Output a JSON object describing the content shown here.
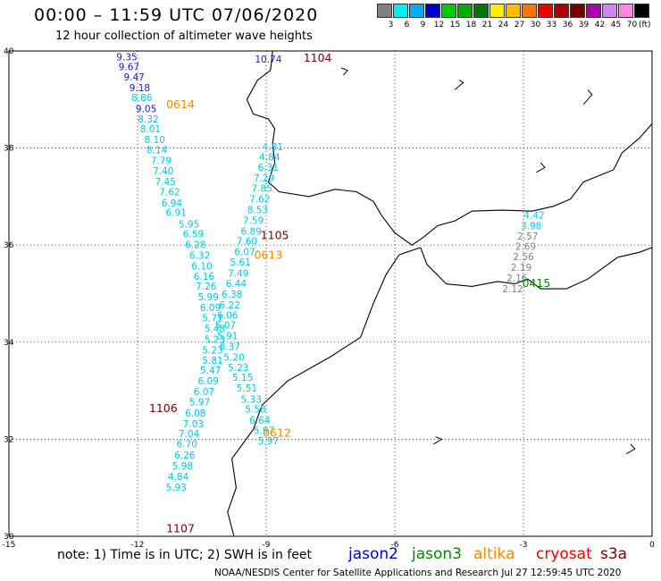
{
  "header": {
    "title": "00:00 – 11:59 UTC 07/06/2020",
    "subtitle": "12 hour collection of altimeter wave heights"
  },
  "legend": {
    "unit": "(ft)",
    "bins": [
      {
        "label": "3",
        "color": "#808080"
      },
      {
        "label": "6",
        "color": "#00eeee"
      },
      {
        "label": "9",
        "color": "#00aaff"
      },
      {
        "label": "12",
        "color": "#0000cc"
      },
      {
        "label": "15",
        "color": "#00cc00"
      },
      {
        "label": "18",
        "color": "#00aa00"
      },
      {
        "label": "21",
        "color": "#007700"
      },
      {
        "label": "24",
        "color": "#ffee00"
      },
      {
        "label": "27",
        "color": "#ffbb00"
      },
      {
        "label": "30",
        "color": "#ff7700"
      },
      {
        "label": "33",
        "color": "#ee0000"
      },
      {
        "label": "36",
        "color": "#aa0000"
      },
      {
        "label": "39",
        "color": "#770000"
      },
      {
        "label": "42",
        "color": "#aa00aa"
      },
      {
        "label": "45",
        "color": "#cc88ee"
      },
      {
        "label": "70",
        "color": "#ff88dd"
      },
      {
        "label": "",
        "color": "#000000"
      }
    ]
  },
  "axes": {
    "lon_ticks": [
      {
        "label": "-15",
        "lon": -15
      },
      {
        "label": "-12",
        "lon": -12
      },
      {
        "label": "-9",
        "lon": -9
      },
      {
        "label": "-6",
        "lon": -6
      },
      {
        "label": "-3",
        "lon": -3
      },
      {
        "label": "0",
        "lon": 0
      }
    ],
    "lat_ticks": [
      {
        "label": "40",
        "lat": 40
      },
      {
        "label": "38",
        "lat": 38
      },
      {
        "label": "36",
        "lat": 36
      },
      {
        "label": "34",
        "lat": 34
      },
      {
        "label": "32",
        "lat": 32
      },
      {
        "label": "30",
        "lat": 30
      }
    ],
    "lon_range": [
      -15,
      0
    ],
    "lat_range": [
      30,
      40
    ],
    "grid_lons": [
      -12,
      -9,
      -6,
      -3
    ],
    "grid_lats": [
      38,
      36,
      34,
      32
    ]
  },
  "colors": {
    "jason2": "#0000cc",
    "jason3": "#008800",
    "altika": "#ff8800",
    "cryosat": "#ee0000",
    "s3a": "#770000",
    "low": "#808080",
    "cyan": "#00c8e8",
    "blue": "#1a1acc"
  },
  "tracks": [
    {
      "sat": "s3a",
      "time": "1104",
      "time_lon": -7.8,
      "time_lat": 39.78
    },
    {
      "sat": "altika",
      "time": "0614",
      "time_lon": -11.0,
      "time_lat": 38.82
    },
    {
      "sat": "s3a",
      "time": "1105",
      "time_lon": -8.8,
      "time_lat": 36.12
    },
    {
      "sat": "altika",
      "time": "0613",
      "time_lon": -8.95,
      "time_lat": 35.72
    },
    {
      "sat": "jason3",
      "time": "0415",
      "time_lon": -2.7,
      "time_lat": 35.14
    },
    {
      "sat": "s3a",
      "time": "1106",
      "time_lon": -11.4,
      "time_lat": 32.56
    },
    {
      "sat": "altika",
      "time": "0612",
      "time_lon": -8.75,
      "time_lat": 32.05
    },
    {
      "sat": "s3a",
      "time": "1107",
      "time_lon": -11.0,
      "time_lat": 30.08
    }
  ],
  "obs": [
    {
      "v": "9.35",
      "lon": -12.25,
      "lat": 39.81,
      "c": "blue"
    },
    {
      "v": "9.67",
      "lon": -12.2,
      "lat": 39.6,
      "c": "blue"
    },
    {
      "v": "9.47",
      "lon": -12.08,
      "lat": 39.39,
      "c": "blue"
    },
    {
      "v": "9.18",
      "lon": -11.95,
      "lat": 39.17,
      "c": "blue"
    },
    {
      "v": "8.86",
      "lon": -11.9,
      "lat": 38.97,
      "c": "cyan"
    },
    {
      "v": "9.05",
      "lon": -11.8,
      "lat": 38.74,
      "c": "blue"
    },
    {
      "v": "8.32",
      "lon": -11.75,
      "lat": 38.53,
      "c": "cyan"
    },
    {
      "v": "8.01",
      "lon": -11.7,
      "lat": 38.32,
      "c": "cyan"
    },
    {
      "v": "8.10",
      "lon": -11.6,
      "lat": 38.1,
      "c": "cyan"
    },
    {
      "v": "8.14",
      "lon": -11.55,
      "lat": 37.89,
      "c": "cyan"
    },
    {
      "v": "7.79",
      "lon": -11.45,
      "lat": 37.67,
      "c": "cyan"
    },
    {
      "v": "7.40",
      "lon": -11.4,
      "lat": 37.46,
      "c": "cyan"
    },
    {
      "v": "7.45",
      "lon": -11.35,
      "lat": 37.24,
      "c": "cyan"
    },
    {
      "v": "7.62",
      "lon": -11.25,
      "lat": 37.03,
      "c": "cyan"
    },
    {
      "v": "6.94",
      "lon": -11.2,
      "lat": 36.8,
      "c": "cyan"
    },
    {
      "v": "6.91",
      "lon": -11.1,
      "lat": 36.6,
      "c": "cyan"
    },
    {
      "v": "5.95",
      "lon": -10.8,
      "lat": 36.36,
      "c": "cyan"
    },
    {
      "v": "6.59",
      "lon": -10.7,
      "lat": 36.16,
      "c": "cyan"
    },
    {
      "v": "6.28",
      "lon": -10.65,
      "lat": 35.94,
      "c": "cyan"
    },
    {
      "v": "6.32",
      "lon": -10.55,
      "lat": 35.72,
      "c": "cyan"
    },
    {
      "v": "6.10",
      "lon": -10.5,
      "lat": 35.5,
      "c": "cyan"
    },
    {
      "v": "6.16",
      "lon": -10.45,
      "lat": 35.29,
      "c": "cyan"
    },
    {
      "v": "7.26",
      "lon": -10.4,
      "lat": 35.08,
      "c": "cyan"
    },
    {
      "v": "5.99",
      "lon": -10.35,
      "lat": 34.86,
      "c": "cyan"
    },
    {
      "v": "6.09",
      "lon": -10.3,
      "lat": 34.64,
      "c": "cyan"
    },
    {
      "v": "5.71",
      "lon": -10.25,
      "lat": 34.43,
      "c": "cyan"
    },
    {
      "v": "5.48",
      "lon": -10.2,
      "lat": 34.21,
      "c": "cyan"
    },
    {
      "v": "5.23",
      "lon": -10.2,
      "lat": 33.99,
      "c": "cyan"
    },
    {
      "v": "5.23",
      "lon": -10.25,
      "lat": 33.77,
      "c": "cyan"
    },
    {
      "v": "5.81",
      "lon": -10.25,
      "lat": 33.55,
      "c": "cyan"
    },
    {
      "v": "5.47",
      "lon": -10.3,
      "lat": 33.35,
      "c": "cyan"
    },
    {
      "v": "6.09",
      "lon": -10.35,
      "lat": 33.13,
      "c": "cyan"
    },
    {
      "v": "6.07",
      "lon": -10.45,
      "lat": 32.91,
      "c": "cyan"
    },
    {
      "v": "5.97",
      "lon": -10.55,
      "lat": 32.7,
      "c": "cyan"
    },
    {
      "v": "6.08",
      "lon": -10.65,
      "lat": 32.47,
      "c": "cyan"
    },
    {
      "v": "7.03",
      "lon": -10.7,
      "lat": 32.25,
      "c": "cyan"
    },
    {
      "v": "7.04",
      "lon": -10.8,
      "lat": 32.04,
      "c": "cyan"
    },
    {
      "v": "6.70",
      "lon": -10.85,
      "lat": 31.83,
      "c": "cyan"
    },
    {
      "v": "6.26",
      "lon": -10.9,
      "lat": 31.6,
      "c": "cyan"
    },
    {
      "v": "5.98",
      "lon": -10.95,
      "lat": 31.38,
      "c": "cyan"
    },
    {
      "v": "4.84",
      "lon": -11.05,
      "lat": 31.16,
      "c": "cyan"
    },
    {
      "v": "5.93",
      "lon": -11.1,
      "lat": 30.94,
      "c": "cyan"
    },
    {
      "v": "10.74",
      "lon": -8.95,
      "lat": 39.76,
      "c": "blue"
    },
    {
      "v": "4.81",
      "lon": -8.85,
      "lat": 37.96,
      "c": "cyan"
    },
    {
      "v": "4.84",
      "lon": -8.92,
      "lat": 37.74,
      "c": "cyan"
    },
    {
      "v": "6.31",
      "lon": -8.95,
      "lat": 37.53,
      "c": "cyan"
    },
    {
      "v": "7.29",
      "lon": -9.05,
      "lat": 37.31,
      "c": "cyan"
    },
    {
      "v": "7.85",
      "lon": -9.1,
      "lat": 37.1,
      "c": "cyan"
    },
    {
      "v": "7.62",
      "lon": -9.15,
      "lat": 36.88,
      "c": "cyan"
    },
    {
      "v": "8.53",
      "lon": -9.2,
      "lat": 36.66,
      "c": "cyan"
    },
    {
      "v": "7.59",
      "lon": -9.3,
      "lat": 36.44,
      "c": "cyan"
    },
    {
      "v": "6.89",
      "lon": -9.35,
      "lat": 36.22,
      "c": "cyan"
    },
    {
      "v": "7.60",
      "lon": -9.45,
      "lat": 36.01,
      "c": "cyan"
    },
    {
      "v": "6.07",
      "lon": -9.5,
      "lat": 35.79,
      "c": "cyan"
    },
    {
      "v": "5.61",
      "lon": -9.6,
      "lat": 35.58,
      "c": "cyan"
    },
    {
      "v": "7.49",
      "lon": -9.65,
      "lat": 35.35,
      "c": "cyan"
    },
    {
      "v": "6.44",
      "lon": -9.7,
      "lat": 35.14,
      "c": "cyan"
    },
    {
      "v": "6.38",
      "lon": -9.8,
      "lat": 34.92,
      "c": "cyan"
    },
    {
      "v": "6.22",
      "lon": -9.85,
      "lat": 34.7,
      "c": "cyan"
    },
    {
      "v": "6.06",
      "lon": -9.9,
      "lat": 34.48,
      "c": "cyan"
    },
    {
      "v": "5.07",
      "lon": -9.95,
      "lat": 34.28,
      "c": "cyan"
    },
    {
      "v": "5.91",
      "lon": -9.9,
      "lat": 34.06,
      "c": "cyan"
    },
    {
      "v": "6.37",
      "lon": -9.85,
      "lat": 33.84,
      "c": "cyan"
    },
    {
      "v": "5.20",
      "lon": -9.75,
      "lat": 33.62,
      "c": "cyan"
    },
    {
      "v": "5.23",
      "lon": -9.65,
      "lat": 33.41,
      "c": "cyan"
    },
    {
      "v": "5.15",
      "lon": -9.55,
      "lat": 33.2,
      "c": "cyan"
    },
    {
      "v": "5.51",
      "lon": -9.45,
      "lat": 32.98,
      "c": "cyan"
    },
    {
      "v": "5.33",
      "lon": -9.35,
      "lat": 32.75,
      "c": "cyan"
    },
    {
      "v": "5.58",
      "lon": -9.25,
      "lat": 32.55,
      "c": "cyan"
    },
    {
      "v": "6.64",
      "lon": -9.15,
      "lat": 32.32,
      "c": "cyan"
    },
    {
      "v": "5.97",
      "lon": -9.05,
      "lat": 32.11,
      "c": "cyan"
    },
    {
      "v": "5.97",
      "lon": -8.95,
      "lat": 31.9,
      "c": "cyan"
    },
    {
      "v": "4.42",
      "lon": -2.75,
      "lat": 36.55,
      "c": "cyan"
    },
    {
      "v": "3.98",
      "lon": -2.82,
      "lat": 36.33,
      "c": "cyan"
    },
    {
      "v": "2.57",
      "lon": -2.9,
      "lat": 36.11,
      "c": "low"
    },
    {
      "v": "2.69",
      "lon": -2.95,
      "lat": 35.9,
      "c": "low"
    },
    {
      "v": "2.56",
      "lon": -3.0,
      "lat": 35.69,
      "c": "low"
    },
    {
      "v": "2.19",
      "lon": -3.05,
      "lat": 35.47,
      "c": "low"
    },
    {
      "v": "2.16",
      "lon": -3.15,
      "lat": 35.25,
      "c": "low"
    },
    {
      "v": "2.12",
      "lon": -3.25,
      "lat": 35.03,
      "c": "low"
    }
  ],
  "coast": {
    "iberia": [
      [
        -8.85,
        40
      ],
      [
        -8.9,
        39.6
      ],
      [
        -9.2,
        39.4
      ],
      [
        -9.45,
        39.0
      ],
      [
        -9.3,
        38.7
      ],
      [
        -8.95,
        38.6
      ],
      [
        -8.8,
        38.4
      ],
      [
        -8.85,
        38.1
      ],
      [
        -8.8,
        37.7
      ],
      [
        -8.95,
        37.3
      ],
      [
        -8.7,
        37.1
      ],
      [
        -8.0,
        37.0
      ],
      [
        -7.4,
        37.15
      ],
      [
        -6.9,
        37.1
      ],
      [
        -6.5,
        36.9
      ],
      [
        -6.3,
        36.6
      ],
      [
        -6.0,
        36.25
      ],
      [
        -5.6,
        36.0
      ],
      [
        -5.35,
        36.15
      ],
      [
        -5.0,
        36.4
      ],
      [
        -4.6,
        36.5
      ],
      [
        -4.2,
        36.7
      ],
      [
        -3.5,
        36.72
      ],
      [
        -2.8,
        36.7
      ],
      [
        -2.3,
        36.8
      ],
      [
        -1.9,
        36.95
      ],
      [
        -1.6,
        37.3
      ],
      [
        -0.9,
        37.55
      ],
      [
        -0.7,
        37.9
      ],
      [
        -0.3,
        38.2
      ],
      [
        -0.1,
        38.4
      ],
      [
        0,
        38.5
      ]
    ],
    "africa": [
      [
        -5.4,
        35.95
      ],
      [
        -5.9,
        35.8
      ],
      [
        -6.2,
        35.4
      ],
      [
        -6.5,
        34.8
      ],
      [
        -6.8,
        34.1
      ],
      [
        -7.5,
        33.7
      ],
      [
        -8.5,
        33.2
      ],
      [
        -9.1,
        32.7
      ],
      [
        -9.3,
        32.2
      ],
      [
        -9.8,
        31.6
      ],
      [
        -9.7,
        31.0
      ],
      [
        -9.9,
        30.5
      ],
      [
        -9.75,
        30.0
      ]
    ],
    "africa_med": [
      [
        -5.4,
        35.95
      ],
      [
        -5.25,
        35.6
      ],
      [
        -4.8,
        35.2
      ],
      [
        -4.2,
        35.15
      ],
      [
        -3.6,
        35.25
      ],
      [
        -3.2,
        35.2
      ],
      [
        -2.9,
        35.3
      ],
      [
        -2.6,
        35.1
      ],
      [
        -2.0,
        35.1
      ],
      [
        -1.5,
        35.3
      ],
      [
        -0.8,
        35.75
      ],
      [
        -0.3,
        35.85
      ],
      [
        0,
        35.95
      ]
    ],
    "islands": [
      [
        [
          -7.2,
          39.5
        ],
        [
          -7.1,
          39.6
        ],
        [
          -7.25,
          39.65
        ]
      ],
      [
        [
          -4.6,
          39.2
        ],
        [
          -4.4,
          39.35
        ],
        [
          -4.5,
          39.4
        ]
      ],
      [
        [
          -2.7,
          37.5
        ],
        [
          -2.5,
          37.6
        ],
        [
          -2.6,
          37.7
        ]
      ],
      [
        [
          -1.6,
          38.9
        ],
        [
          -1.4,
          39.1
        ],
        [
          -1.5,
          39.2
        ]
      ],
      [
        [
          -5.1,
          31.9
        ],
        [
          -4.9,
          32.0
        ],
        [
          -5.05,
          32.05
        ]
      ],
      [
        [
          -0.6,
          31.7
        ],
        [
          -0.4,
          31.8
        ],
        [
          -0.5,
          31.9
        ]
      ]
    ]
  },
  "footer": {
    "note": "note:  1) Time is in UTC;  2) SWH is in feet",
    "sats": [
      {
        "label": "jason2",
        "c": "jason2"
      },
      {
        "label": "jason3",
        "c": "jason3"
      },
      {
        "label": "altika",
        "c": "altika"
      },
      {
        "label": "cryosat",
        "c": "cryosat"
      },
      {
        "label": "s3a",
        "c": "s3a"
      }
    ],
    "credit": "NOAA/NESDIS Center for Satellite Applications and Research   Jul 27 12:59:45 UTC 2020"
  }
}
